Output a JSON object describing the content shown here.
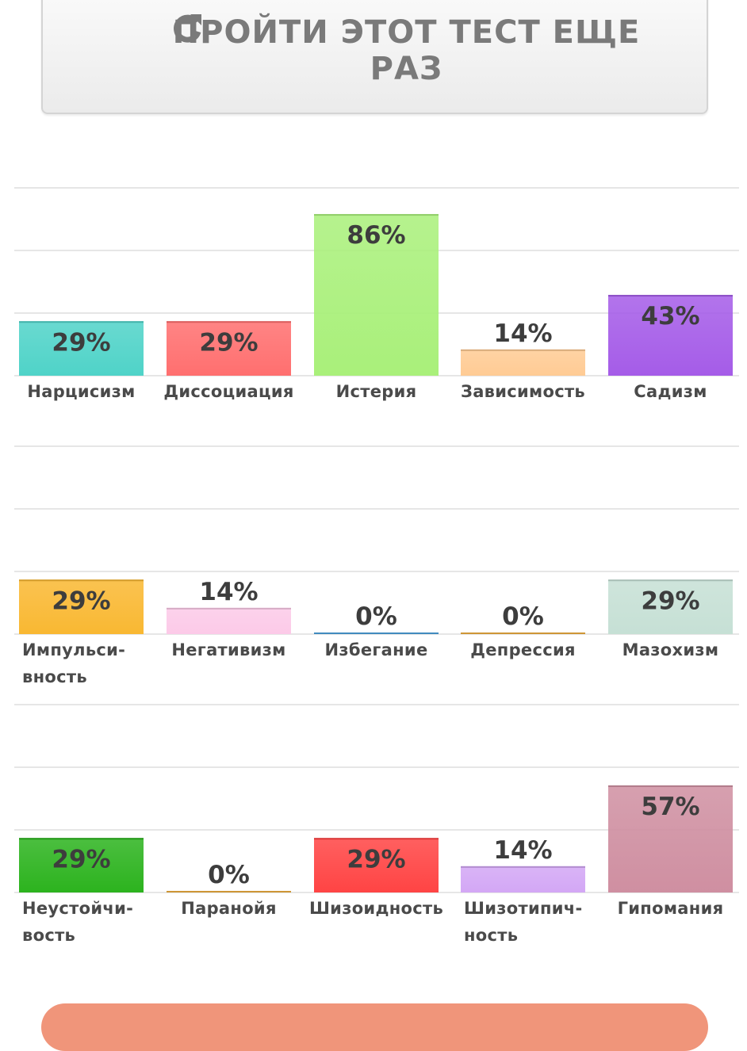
{
  "retry_button": {
    "label": "ПРОЙТИ ЭТОТ ТЕСТ ЕЩЕ РАЗ",
    "icon": "refresh-icon"
  },
  "chart_data": [
    {
      "type": "bar",
      "categories": [
        "Нарцисизм",
        "Диссоциация",
        "Истерия",
        "Зависимость",
        "Садизм"
      ],
      "values": [
        29,
        29,
        86,
        14,
        43
      ],
      "value_labels": [
        "29%",
        "29%",
        "86%",
        "14%",
        "43%"
      ],
      "colors": [
        "#4fd3c8",
        "#ff6f6f",
        "#a9f07a",
        "#ffcb94",
        "#a55ce8"
      ],
      "ylim": [
        0,
        100
      ],
      "grid": true
    },
    {
      "type": "bar",
      "categories": [
        "Импульси-\nвность",
        "Негативизм",
        "Избегание",
        "Депрессия",
        "Мазохизм"
      ],
      "values": [
        29,
        14,
        0,
        0,
        29
      ],
      "value_labels": [
        "29%",
        "14%",
        "0%",
        "0%",
        "29%"
      ],
      "colors": [
        "#f9b832",
        "#fccae8",
        "#4da3e0",
        "#f2b040",
        "#c6e0d5"
      ],
      "ylim": [
        0,
        100
      ],
      "grid": true
    },
    {
      "type": "bar",
      "categories": [
        "Неустойчи-\nвость",
        "Паранойя",
        "Шизоидность",
        "Шизотипич-\nность",
        "Гипомания"
      ],
      "values": [
        29,
        0,
        29,
        14,
        57
      ],
      "value_labels": [
        "29%",
        "0%",
        "29%",
        "14%",
        "57%"
      ],
      "colors": [
        "#2cb31e",
        "#f2b040",
        "#ff4444",
        "#d3a7f5",
        "#cf8fa1"
      ],
      "ylim": [
        0,
        100
      ],
      "grid": true
    }
  ]
}
